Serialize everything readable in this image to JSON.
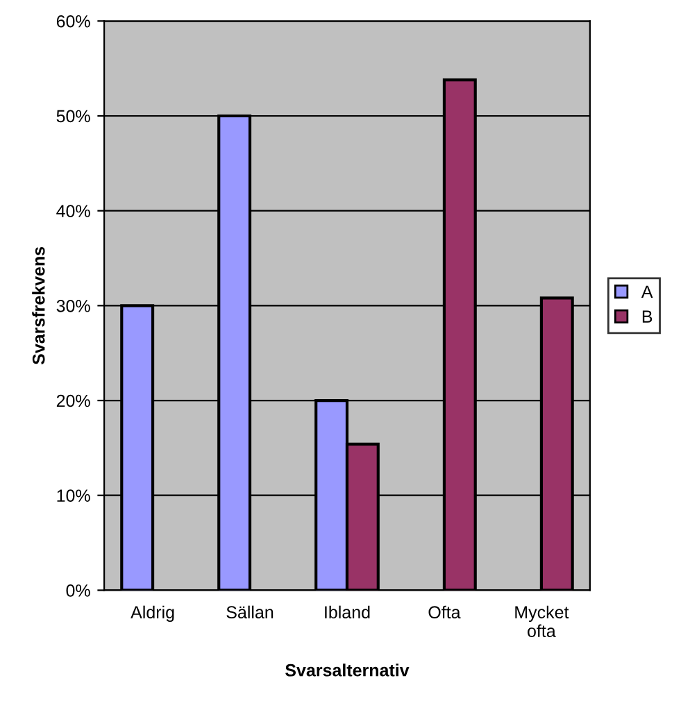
{
  "chart_data": {
    "type": "bar",
    "xlabel": "Svarsalternativ",
    "ylabel": "Svarsfrekvens",
    "categories": [
      "Aldrig",
      "Sällan",
      "Ibland",
      "Ofta",
      "Mycket\nofta"
    ],
    "series": [
      {
        "name": "A",
        "color": "#9999ff",
        "values": [
          30,
          50,
          20,
          null,
          null
        ]
      },
      {
        "name": "B",
        "color": "#993366",
        "values": [
          null,
          null,
          15.4,
          53.8,
          30.8
        ]
      }
    ],
    "ylim": [
      0,
      60
    ],
    "yticks": [
      {
        "value": 0,
        "label": "0%"
      },
      {
        "value": 10,
        "label": "10%"
      },
      {
        "value": 20,
        "label": "20%"
      },
      {
        "value": 30,
        "label": "30%"
      },
      {
        "value": 40,
        "label": "40%"
      },
      {
        "value": 50,
        "label": "50%"
      },
      {
        "value": 60,
        "label": "60%"
      }
    ],
    "grid": "y",
    "legend": "right"
  }
}
